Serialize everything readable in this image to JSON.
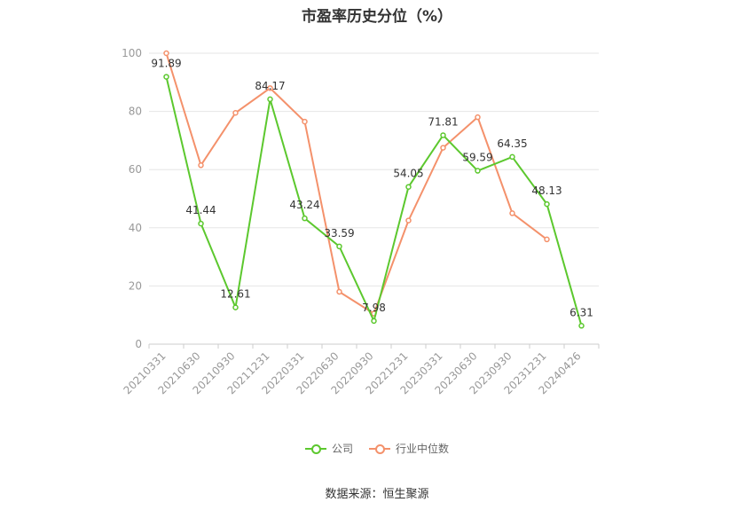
{
  "chart_data": {
    "type": "line",
    "title": "市盈率历史分位（%）",
    "categories": [
      "20210331",
      "20210630",
      "20210930",
      "20211231",
      "20220331",
      "20220630",
      "20220930",
      "20221231",
      "20230331",
      "20230630",
      "20230930",
      "20231231",
      "20240426"
    ],
    "ylim": [
      0,
      100
    ],
    "yticks": [
      0,
      20,
      40,
      60,
      80,
      100
    ],
    "series": [
      {
        "name": "公司",
        "color": "#5cc82e",
        "values": [
          91.89,
          41.44,
          12.61,
          84.17,
          43.24,
          33.59,
          7.98,
          54.05,
          71.81,
          59.59,
          64.35,
          48.13,
          6.31
        ],
        "labels": [
          "91.89",
          "41.44",
          "12.61",
          "84.17",
          "43.24",
          "33.59",
          "7.98",
          "54.05",
          "71.81",
          "59.59",
          "64.35",
          "48.13",
          "6.31"
        ]
      },
      {
        "name": "行业中位数",
        "color": "#f4916b",
        "values": [
          100,
          61.5,
          79.5,
          88,
          76.5,
          18,
          10.5,
          42.5,
          67.5,
          78,
          45,
          36,
          null
        ]
      }
    ],
    "grid": true,
    "legend": "bottom"
  },
  "legend": {
    "company": "公司",
    "industry": "行业中位数"
  },
  "source": "数据来源：恒生聚源"
}
